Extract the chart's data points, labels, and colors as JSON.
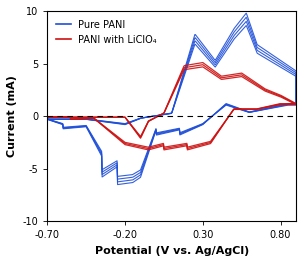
{
  "title": "",
  "xlabel": "Potential (V vs. Ag/AgCl)",
  "ylabel": "Current (mA)",
  "xlim": [
    -0.7,
    0.9
  ],
  "ylim": [
    -10,
    10
  ],
  "xticks": [
    -0.7,
    -0.2,
    0.3,
    0.8
  ],
  "yticks": [
    -10,
    -5,
    0,
    5,
    10
  ],
  "blue_color": "#1f4fd8",
  "red_color": "#cc1111",
  "legend_labels": [
    "Pure PANI",
    "PANI with LiClO₄"
  ],
  "figsize": [
    3.03,
    2.63
  ],
  "dpi": 100
}
